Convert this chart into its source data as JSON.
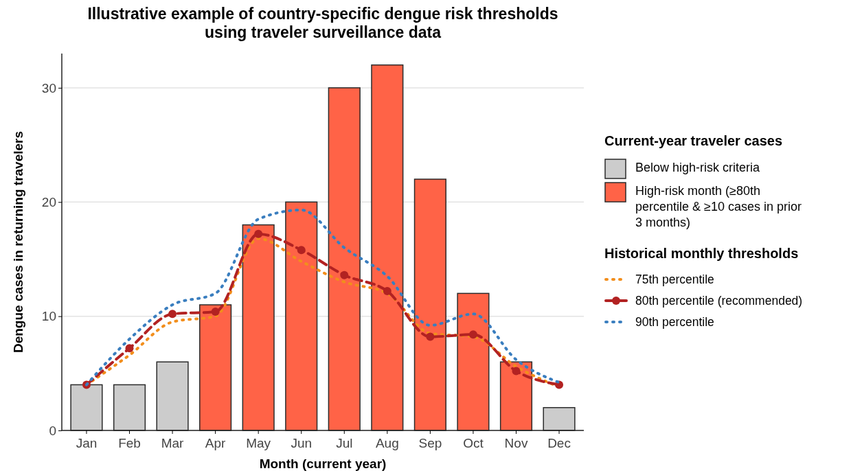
{
  "chart_data": {
    "type": "bar",
    "title": "Illustrative example of country-specific dengue risk thresholds\nusing traveler surveillance data",
    "xlabel": "Month (current year)",
    "ylabel": "Dengue cases in returning travelers",
    "legend_title": "Current-year traveler cases",
    "annotations": [
      "Historical monthly thresholds"
    ],
    "categories": [
      "Jan",
      "Feb",
      "Mar",
      "Apr",
      "May",
      "Jun",
      "Jul",
      "Aug",
      "Sep",
      "Oct",
      "Nov",
      "Dec"
    ],
    "stacked": true,
    "ylim": [
      0,
      33
    ],
    "yticks": [
      0,
      10,
      20,
      30
    ],
    "grid": "y",
    "legend": "right",
    "series": [
      {
        "name": "Below high-risk criteria",
        "color": "#cccccc",
        "values": [
          4,
          4,
          6,
          null,
          null,
          null,
          null,
          null,
          null,
          null,
          null,
          2
        ]
      },
      {
        "name": "High-risk month (≥80th percentile & ≥10 cases in prior 3 months)",
        "color": "#ff6347",
        "values": [
          null,
          null,
          null,
          11,
          18,
          20,
          30,
          32,
          22,
          12,
          6,
          null
        ]
      },
      {
        "name": "75th percentile",
        "type": "line",
        "color": "#f28e1c",
        "line_style": "dotted",
        "marker": "none",
        "values": [
          4,
          6.6,
          9.5,
          10,
          16.8,
          14.8,
          13,
          12,
          8.5,
          8.2,
          5.6,
          3.8
        ]
      },
      {
        "name": "80th percentile (recommended)",
        "type": "line",
        "color": "#b22222",
        "line_style": "dashed",
        "marker": "circle",
        "values": [
          4,
          7.2,
          10.2,
          10.4,
          17.2,
          15.8,
          13.6,
          12.2,
          8.2,
          8.4,
          5.2,
          4
        ]
      },
      {
        "name": "90th percentile",
        "type": "line",
        "color": "#3a7ebf",
        "line_style": "dotted",
        "marker": "none",
        "values": [
          4,
          8,
          11,
          12,
          18.5,
          19.3,
          16,
          13.5,
          9.2,
          10.2,
          6.2,
          4.2
        ]
      }
    ]
  }
}
